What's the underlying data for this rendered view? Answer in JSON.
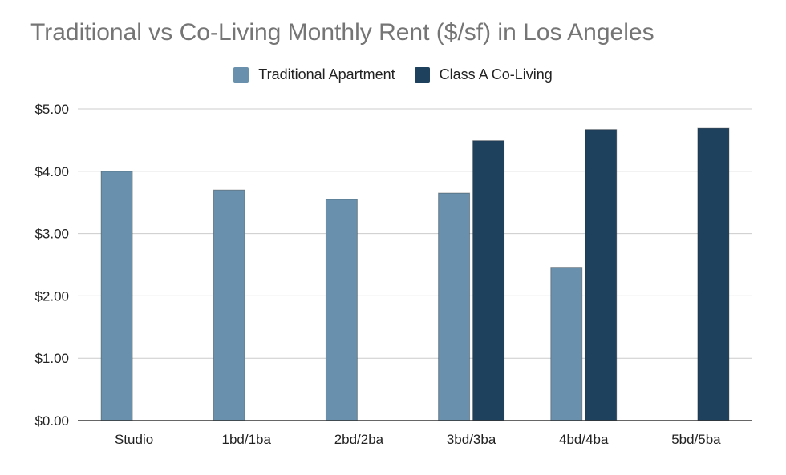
{
  "chart_data": {
    "type": "bar",
    "title": "Traditional vs Co-Living Monthly Rent ($/sf) in Los Angeles",
    "categories": [
      "Studio",
      "1bd/1ba",
      "2bd/2ba",
      "3bd/3ba",
      "4bd/4ba",
      "5bd/5ba"
    ],
    "series": [
      {
        "name": "Traditional Apartment",
        "color": "#6990ac",
        "values": [
          4.0,
          3.7,
          3.55,
          3.65,
          2.46,
          null
        ]
      },
      {
        "name": "Class A Co-Living",
        "color": "#1e415e",
        "values": [
          null,
          null,
          null,
          4.49,
          4.67,
          4.69
        ]
      }
    ],
    "y_ticks": [
      "$0.00",
      "$1.00",
      "$2.00",
      "$3.00",
      "$4.00",
      "$5.00"
    ],
    "ylim": [
      0,
      5
    ],
    "xlabel": "",
    "ylabel": "",
    "grid": true,
    "legend_position": "top"
  }
}
